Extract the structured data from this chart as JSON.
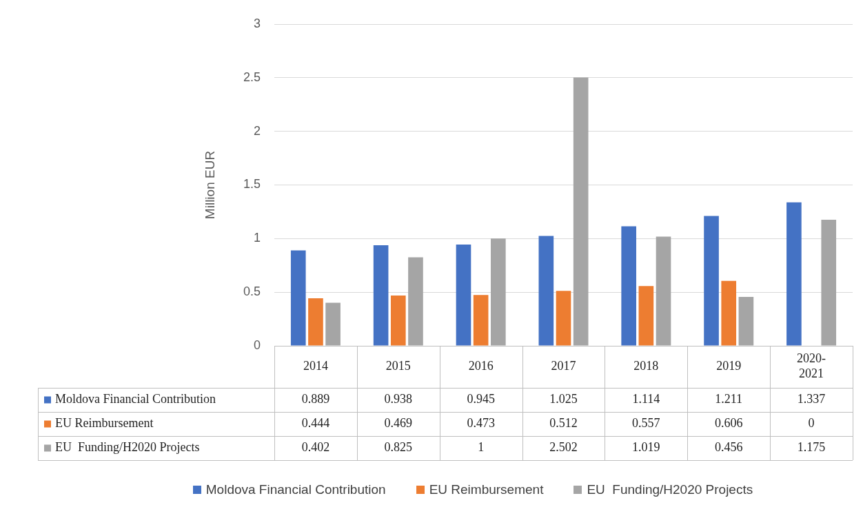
{
  "chart_data": {
    "type": "bar",
    "ylabel": "Million EUR",
    "categories": [
      "2014",
      "2015",
      "2016",
      "2017",
      "2018",
      "2019",
      "2020-2021"
    ],
    "series": [
      {
        "name": "Moldova Financial Contribution",
        "color": "#4472c4",
        "values": [
          0.889,
          0.938,
          0.945,
          1.025,
          1.114,
          1.211,
          1.337
        ]
      },
      {
        "name": "EU Reimbursement",
        "color": "#ed7d31",
        "values": [
          0.444,
          0.469,
          0.473,
          0.512,
          0.557,
          0.606,
          0
        ]
      },
      {
        "name": "EU  Funding/H2020 Projects",
        "color": "#a5a5a5",
        "values": [
          0.402,
          0.825,
          1,
          2.502,
          1.019,
          0.456,
          1.175
        ]
      }
    ],
    "ylim": [
      0,
      3
    ],
    "yticks": [
      0,
      0.5,
      1,
      1.5,
      2,
      2.5,
      3
    ],
    "grid": "y",
    "legend": "bottom",
    "data_labels": true
  }
}
